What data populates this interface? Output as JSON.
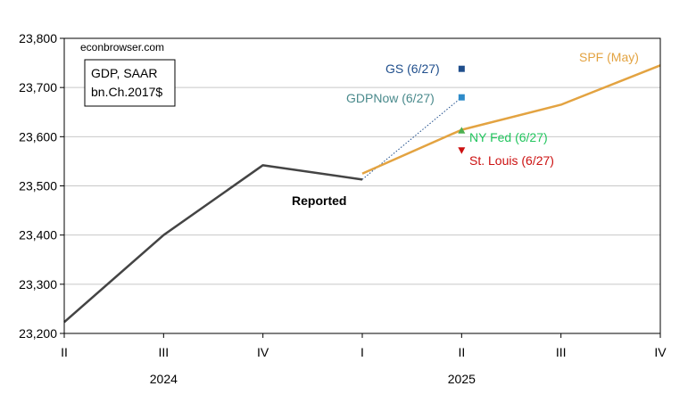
{
  "chart_data": {
    "type": "line",
    "watermark": "econbrowser.com",
    "legend_box": [
      "GDP, SAAR",
      "bn.Ch.2017$"
    ],
    "x": [
      "2024Q2",
      "2024Q3",
      "2024Q4",
      "2025Q1",
      "2025Q2",
      "2025Q3",
      "2025Q4"
    ],
    "x_tick_labels": [
      "II",
      "III",
      "IV",
      "I",
      "II",
      "III",
      "IV"
    ],
    "year_labels": [
      {
        "text": "2024",
        "x": "2024Q3"
      },
      {
        "text": "2025",
        "x": "2025Q2"
      }
    ],
    "ylim": [
      23200,
      23800
    ],
    "yticks": [
      23200,
      23300,
      23400,
      23500,
      23600,
      23700,
      23800
    ],
    "ytick_labels": [
      "23,200",
      "23,300",
      "23,400",
      "23,500",
      "23,600",
      "23,700",
      "23,800"
    ],
    "grid": true,
    "series": [
      {
        "name": "Reported",
        "color": "#444444",
        "points": [
          {
            "x": "2024Q2",
            "y": 23223
          },
          {
            "x": "2024Q3",
            "y": 23400
          },
          {
            "x": "2024Q4",
            "y": 23542
          },
          {
            "x": "2025Q1",
            "y": 23513
          }
        ]
      },
      {
        "name": "SPF (May)",
        "color": "#E3A341",
        "points": [
          {
            "x": "2025Q1",
            "y": 23525
          },
          {
            "x": "2025Q2",
            "y": 23614
          },
          {
            "x": "2025Q3",
            "y": 23665
          },
          {
            "x": "2025Q4",
            "y": 23745
          }
        ]
      }
    ],
    "nowcasts": [
      {
        "name": "GS (6/27)",
        "x": "2025Q2",
        "y": 23738,
        "marker": "square",
        "color": "#1F4E8C"
      },
      {
        "name": "GDPNow (6/27)",
        "x": "2025Q2",
        "y": 23680,
        "marker": "square",
        "color": "#2E8BC9",
        "label_color": "#4A8A8C"
      },
      {
        "name": "NY Fed (6/27)",
        "x": "2025Q2",
        "y": 23612,
        "marker": "triangle-up",
        "color": "#4CAF50",
        "label_color": "#22C55E"
      },
      {
        "name": "St. Louis (6/27)",
        "x": "2025Q2",
        "y": 23573,
        "marker": "triangle-down",
        "color": "#CC1111"
      }
    ],
    "connector": {
      "from": {
        "x": "2025Q1",
        "y": 23513
      },
      "to": {
        "x": "2025Q2",
        "y": 23680
      },
      "color": "#1F4E8C",
      "style": "dotted"
    }
  }
}
